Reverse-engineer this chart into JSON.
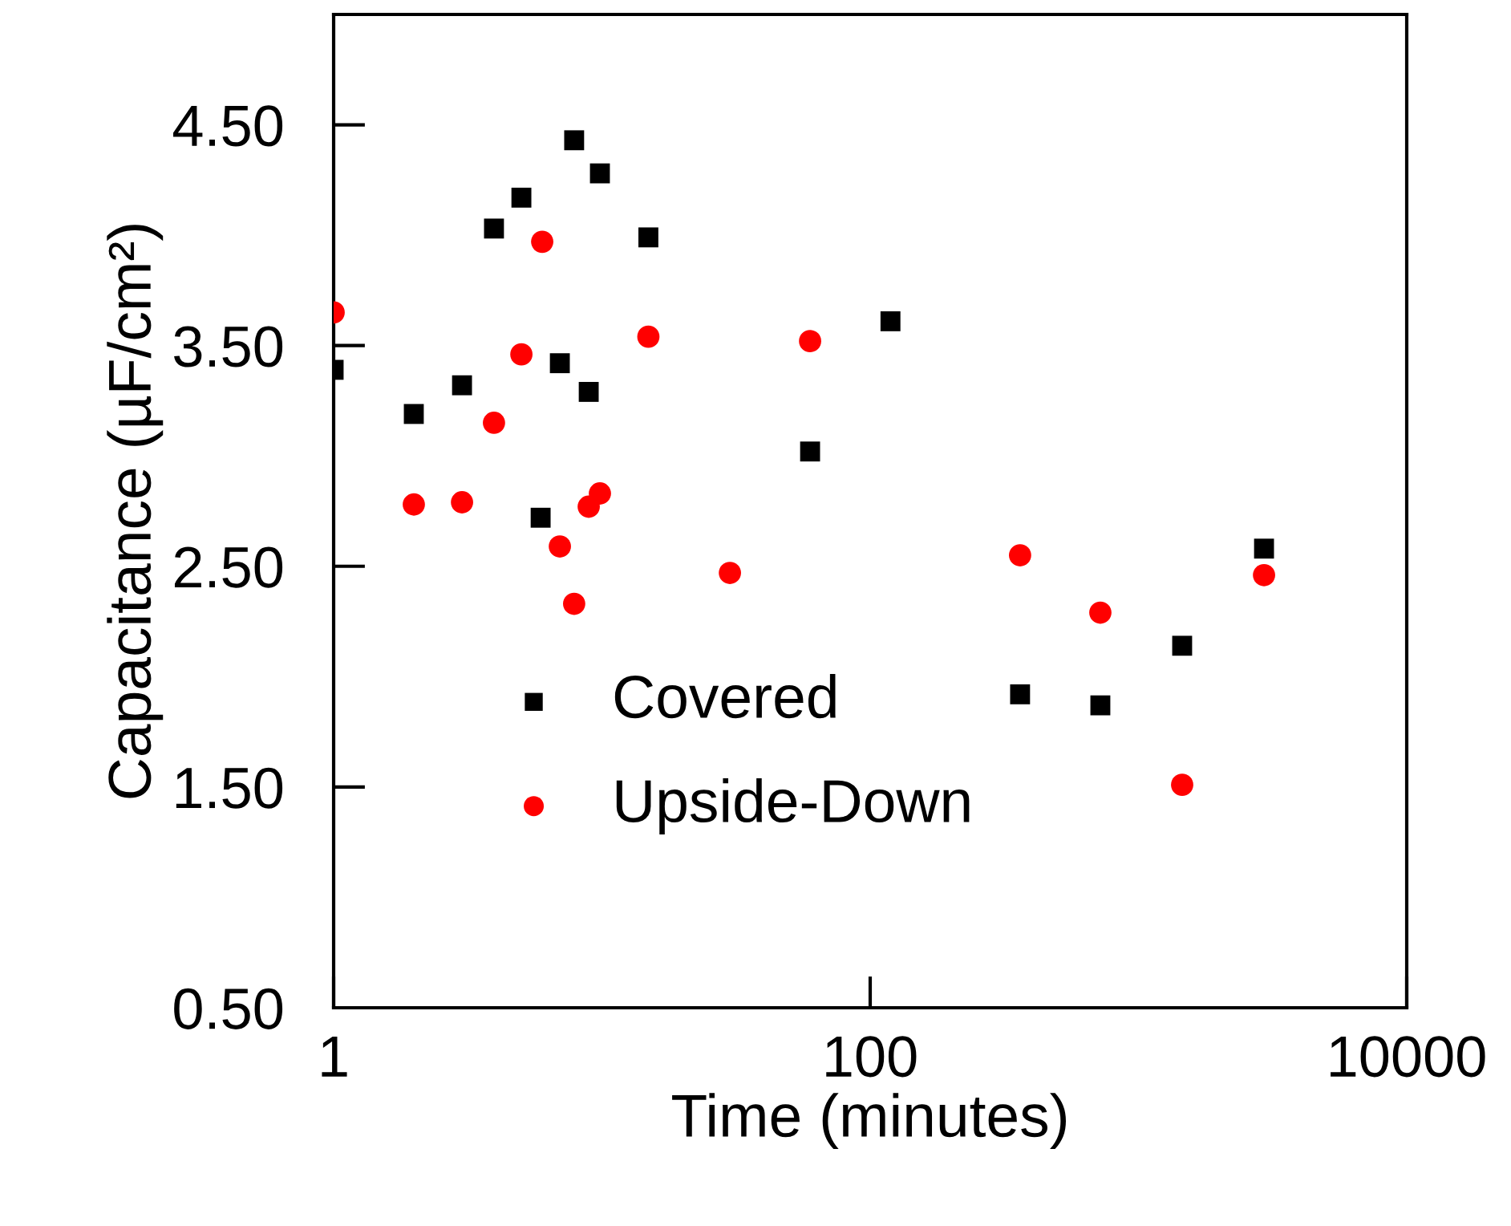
{
  "chart_data": {
    "type": "scatter",
    "xlabel": "Time (minutes)",
    "ylabel": "Capacitance (µF/cm²)",
    "log": "x",
    "xlim": [
      1,
      10000
    ],
    "xticks": [
      1,
      100,
      10000
    ],
    "ylim": [
      0.5,
      5.0
    ],
    "yticks": [
      {
        "value": 0.5,
        "label": "0.50"
      },
      {
        "value": 1.5,
        "label": "1.50"
      },
      {
        "value": 2.5,
        "label": "2.50"
      },
      {
        "value": 3.5,
        "label": "3.50"
      },
      {
        "value": 4.5,
        "label": "4.50"
      }
    ],
    "grid": false,
    "legend": "bottom left",
    "series": [
      {
        "name": "Covered",
        "color": "#000000",
        "marker": "square",
        "x": [
          1,
          1.99,
          3.01,
          3.96,
          5.01,
          7.88,
          9.83,
          14.9,
          6.97,
          8.93,
          5.91,
          59.7,
          119,
          362,
          721,
          1455,
          2938
        ],
        "values": [
          3.39,
          3.19,
          3.32,
          4.03,
          4.17,
          4.43,
          4.28,
          3.99,
          3.42,
          3.29,
          2.72,
          3.02,
          3.61,
          1.92,
          1.87,
          2.14,
          2.58
        ]
      },
      {
        "name": "Upside-Down",
        "color": "#ff0000",
        "marker": "circle",
        "x": [
          1,
          1.99,
          3.01,
          3.96,
          5.01,
          5.99,
          6.97,
          7.88,
          8.93,
          9.83,
          14.9,
          30,
          59.7,
          362,
          721,
          1455,
          2938
        ],
        "values": [
          3.65,
          2.78,
          2.79,
          3.15,
          3.46,
          3.97,
          2.59,
          2.33,
          2.77,
          2.83,
          3.54,
          2.47,
          3.52,
          2.55,
          2.29,
          1.51,
          2.46
        ]
      }
    ]
  }
}
